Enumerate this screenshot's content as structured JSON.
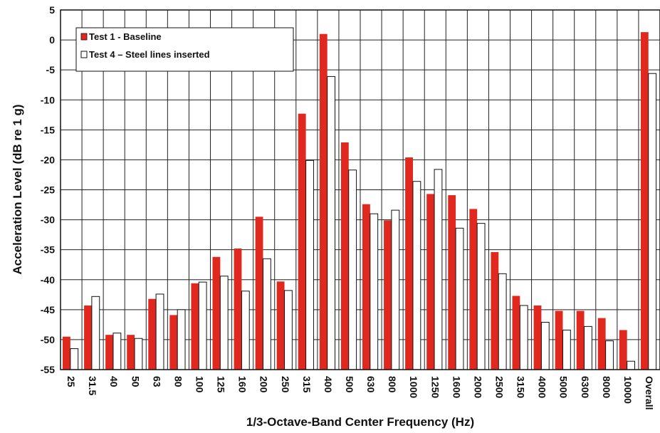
{
  "chart_data": {
    "type": "bar",
    "title": "",
    "xlabel": "1/3-Octave-Band Center Frequency (Hz)",
    "ylabel": "Acceleration Level (dB re 1 g)",
    "ylim": [
      -55,
      5
    ],
    "yticks": [
      "5",
      "0",
      "-5",
      "-10",
      "-15",
      "-20",
      "-25",
      "-30",
      "-35",
      "-40",
      "-45",
      "-50",
      "-55"
    ],
    "grid": true,
    "legend_position": "top-left",
    "categories": [
      "25",
      "31.5",
      "40",
      "50",
      "63",
      "80",
      "100",
      "125",
      "160",
      "200",
      "250",
      "315",
      "400",
      "500",
      "630",
      "800",
      "1000",
      "1250",
      "1600",
      "2000",
      "2500",
      "3150",
      "4000",
      "5000",
      "6300",
      "8000",
      "10000",
      "Overall"
    ],
    "series": [
      {
        "name": "Test 1 - Baseline",
        "color": "#e0281e",
        "values": [
          -49.5,
          -44.3,
          -49.2,
          -49.2,
          -43.2,
          -45.9,
          -40.6,
          -36.2,
          -34.8,
          -29.5,
          -40.3,
          -12.3,
          1.0,
          -17.1,
          -27.4,
          -30.1,
          -19.6,
          -25.7,
          -25.9,
          -28.2,
          -35.4,
          -42.7,
          -44.3,
          -45.2,
          -45.2,
          -46.4,
          -48.4,
          1.3
        ]
      },
      {
        "name": "Test 4 – Steel lines inserted",
        "color": "#ffffff",
        "values": [
          -51.5,
          -42.8,
          -48.9,
          -49.8,
          -42.4,
          -45.0,
          -40.4,
          -39.4,
          -41.9,
          -36.5,
          -41.8,
          -20.1,
          -6.1,
          -21.7,
          -29.0,
          -28.4,
          -23.6,
          -21.6,
          -31.4,
          -30.6,
          -39.0,
          -44.3,
          -47.1,
          -48.4,
          -47.8,
          -50.2,
          -53.6,
          -5.6
        ]
      }
    ]
  }
}
